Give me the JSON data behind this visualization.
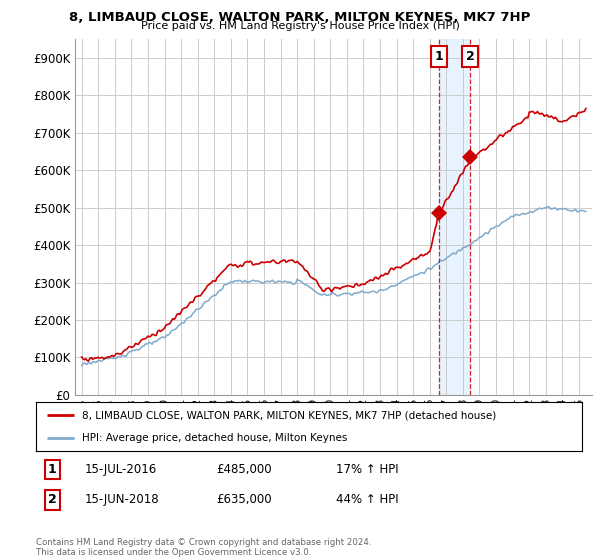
{
  "title": "8, LIMBAUD CLOSE, WALTON PARK, MILTON KEYNES, MK7 7HP",
  "subtitle": "Price paid vs. HM Land Registry's House Price Index (HPI)",
  "red_label": "8, LIMBAUD CLOSE, WALTON PARK, MILTON KEYNES, MK7 7HP (detached house)",
  "blue_label": "HPI: Average price, detached house, Milton Keynes",
  "transaction1_date": "15-JUL-2016",
  "transaction1_price": 485000,
  "transaction1_hpi": "17% ↑ HPI",
  "transaction2_date": "15-JUN-2018",
  "transaction2_price": 635000,
  "transaction2_hpi": "44% ↑ HPI",
  "footer": "Contains HM Land Registry data © Crown copyright and database right 2024.\nThis data is licensed under the Open Government Licence v3.0.",
  "ylim": [
    0,
    950000
  ],
  "yticks": [
    0,
    100000,
    200000,
    300000,
    400000,
    500000,
    600000,
    700000,
    800000,
    900000
  ],
  "ytick_labels": [
    "£0",
    "£100K",
    "£200K",
    "£300K",
    "£400K",
    "£500K",
    "£600K",
    "£700K",
    "£800K",
    "£900K"
  ],
  "red_color": "#cc0000",
  "blue_color": "#7faacc",
  "shade_color": "#ddeeff",
  "grid_color": "#cccccc",
  "background_color": "#ffffff",
  "marker1_x": 2016.54,
  "marker1_y": 485000,
  "marker2_x": 2018.45,
  "marker2_y": 635000,
  "vline1_x": 2016.54,
  "vline2_x": 2018.45,
  "xlim_left": 1994.6,
  "xlim_right": 2025.8
}
